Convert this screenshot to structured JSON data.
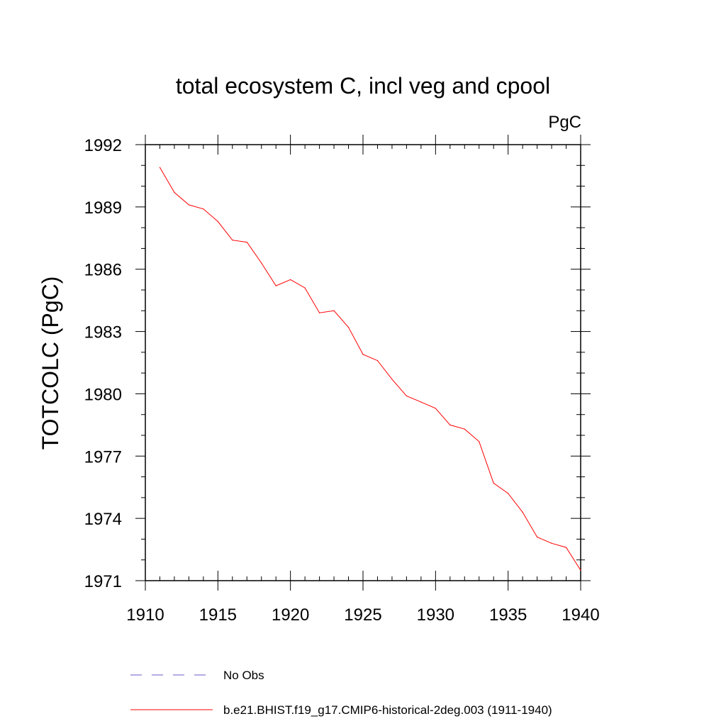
{
  "chart_data": {
    "type": "line",
    "title": "total ecosystem C, incl veg and cpool",
    "units_label": "PgC",
    "ylabel": "TOTCOLC  (PgC)",
    "xlabel": "",
    "xlim": [
      1910,
      1940
    ],
    "ylim": [
      1971,
      1992
    ],
    "x_ticks": [
      1910,
      1915,
      1920,
      1925,
      1930,
      1935,
      1940
    ],
    "y_ticks": [
      1971,
      1974,
      1977,
      1980,
      1983,
      1986,
      1989,
      1992
    ],
    "x_tick_labels": [
      "1910",
      "1915",
      "1920",
      "1925",
      "1930",
      "1935",
      "1940"
    ],
    "y_tick_labels": [
      "1971",
      "1974",
      "1977",
      "1980",
      "1983",
      "1986",
      "1989",
      "1992"
    ],
    "grid": false,
    "legend_position": "bottom",
    "series": [
      {
        "name": "b.e21.BHIST.f19_g17.CMIP6-historical-2deg.003 (1911-1940)",
        "color": "#ff0000",
        "style": "solid",
        "x": [
          1911,
          1912,
          1913,
          1914,
          1915,
          1916,
          1917,
          1918,
          1919,
          1920,
          1921,
          1922,
          1923,
          1924,
          1925,
          1926,
          1927,
          1928,
          1929,
          1930,
          1931,
          1932,
          1933,
          1934,
          1935,
          1936,
          1937,
          1938,
          1939,
          1940
        ],
        "values": [
          1990.9,
          1989.7,
          1989.1,
          1988.9,
          1988.3,
          1987.4,
          1987.3,
          1986.3,
          1985.2,
          1985.5,
          1985.1,
          1983.9,
          1984.0,
          1983.2,
          1981.9,
          1981.6,
          1980.7,
          1979.9,
          1979.6,
          1979.3,
          1978.5,
          1978.3,
          1977.7,
          1975.7,
          1975.2,
          1974.3,
          1973.1,
          1972.8,
          1972.6,
          1971.5
        ]
      },
      {
        "name": "No Obs",
        "color": "#6a5acd",
        "style": "dashed",
        "x": [],
        "values": []
      }
    ]
  }
}
